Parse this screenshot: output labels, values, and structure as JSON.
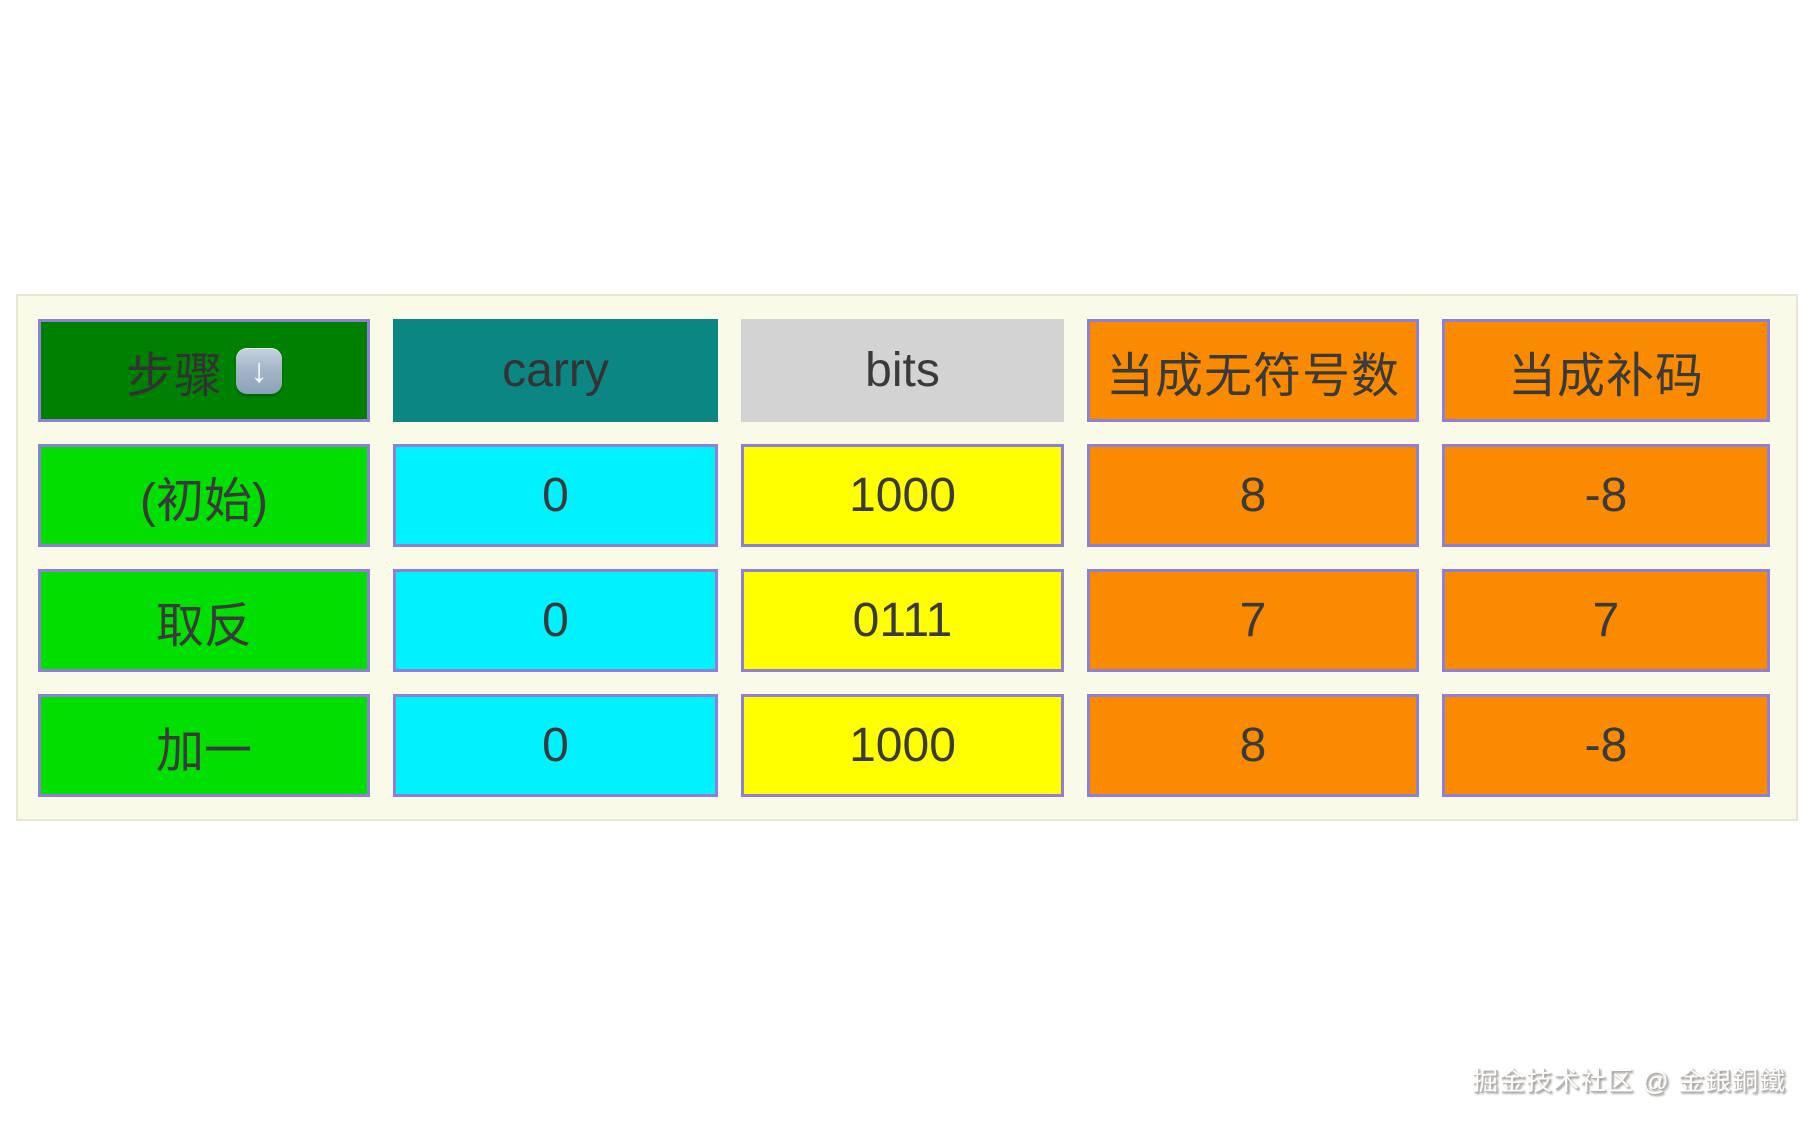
{
  "table": {
    "headers": [
      {
        "label": "步骤",
        "icon": "down-arrow-button-emoji"
      },
      {
        "label": "carry"
      },
      {
        "label": "bits"
      },
      {
        "label": "当成无符号数"
      },
      {
        "label": "当成补码"
      }
    ],
    "rows": [
      {
        "step": "(初始)",
        "carry": "0",
        "bits": "1000",
        "unsigned": "8",
        "complement": "-8"
      },
      {
        "step": "取反",
        "carry": "0",
        "bits": "0111",
        "unsigned": "7",
        "complement": "7"
      },
      {
        "step": "加一",
        "carry": "0",
        "bits": "1000",
        "unsigned": "8",
        "complement": "-8"
      }
    ]
  },
  "icons": {
    "down_arrow": "↓"
  },
  "watermark": "掘金技术社区 @ 金銀銅鐵",
  "colors": {
    "panel_bg": "#fafae8",
    "panel_border": "#e9e7cf",
    "cell_border_purple": "#8f80d5",
    "header_step_bg": "#008000",
    "header_carry_bg": "#0c8682",
    "header_bits_bg": "#d3d3d3",
    "header_orange_bg": "#fa8a00",
    "row_step_bg": "#00df00",
    "row_carry_bg": "#00f2ff",
    "row_bits_bg": "#ffff00",
    "row_orange_bg": "#fa8a00",
    "text": "#3a3a3a"
  }
}
